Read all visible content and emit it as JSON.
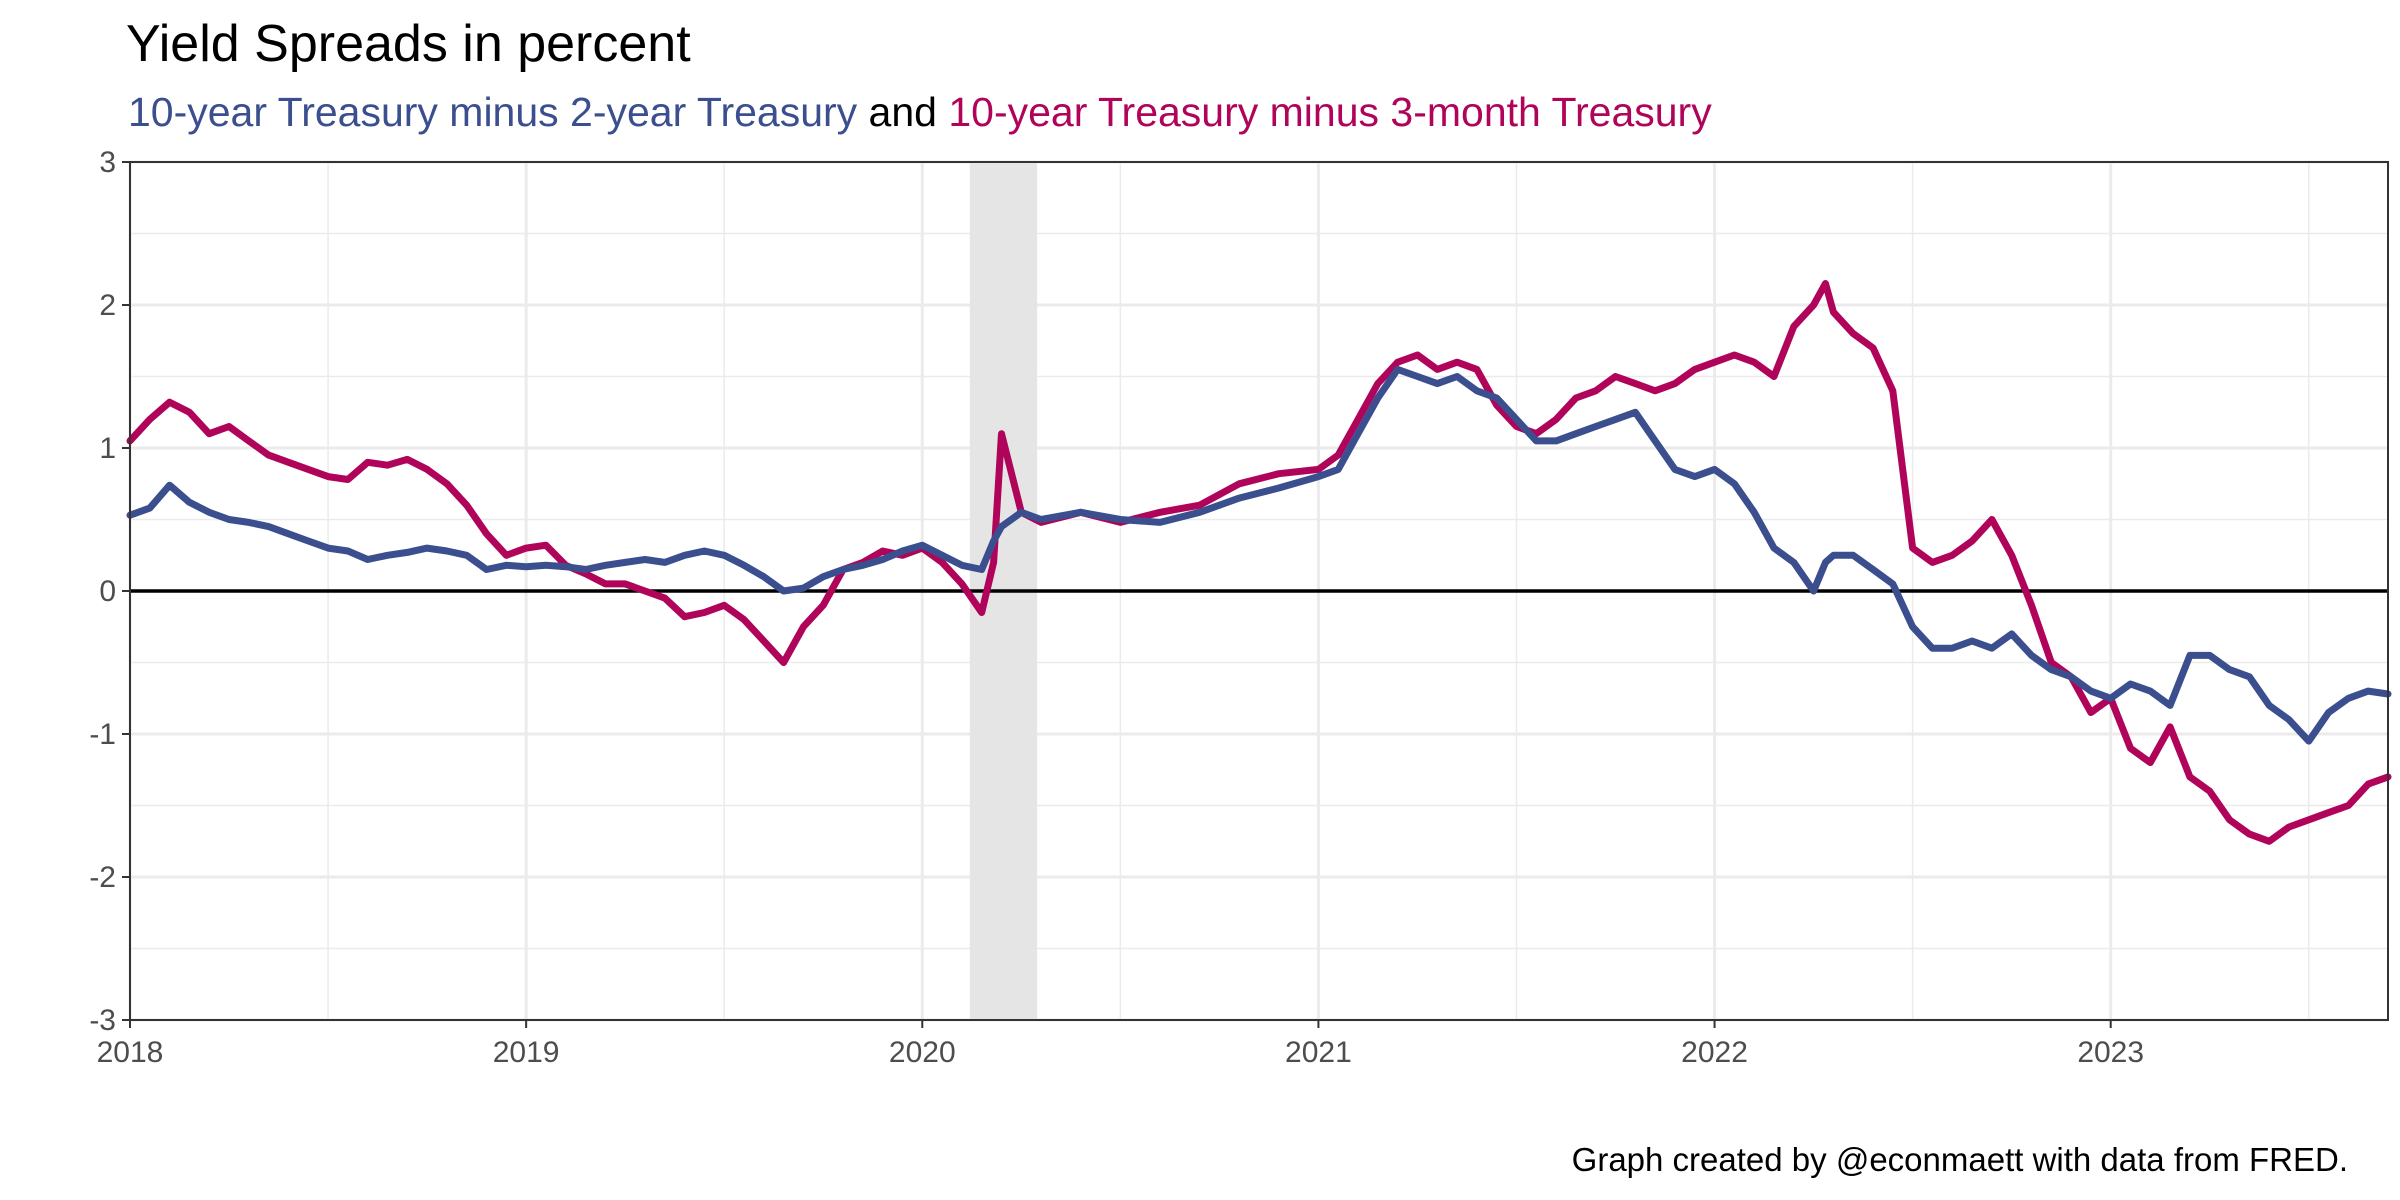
{
  "title": "Yield Spreads in percent",
  "subtitle": {
    "part1": "10-year Treasury minus 2-year Treasury",
    "connector": " and ",
    "part2": "10-year Treasury minus 3-month Treasury"
  },
  "caption": "Graph created by @econmaett with data from FRED.",
  "colors": {
    "series_2y": "#3B4F8F",
    "series_3m": "#B0045A",
    "recession": "#E5E5E5",
    "zero_line": "#000000"
  },
  "chart_data": {
    "type": "line",
    "title": "Yield Spreads in percent",
    "xlabel": "",
    "ylabel": "",
    "xlim": [
      2018.0,
      2023.7
    ],
    "ylim": [
      -3,
      3
    ],
    "x_ticks": [
      "2018",
      "2019",
      "2020",
      "2021",
      "2022",
      "2023"
    ],
    "y_ticks": [
      "3",
      "2",
      "1",
      "0",
      "-1",
      "-2",
      "-3"
    ],
    "grid": true,
    "reference_line_y": 0,
    "shaded_periods": [
      {
        "label": "recession",
        "start": 2020.12,
        "end": 2020.29
      }
    ],
    "series": [
      {
        "name": "10-year Treasury minus 2-year Treasury",
        "x": [
          2018.0,
          2018.05,
          2018.1,
          2018.15,
          2018.2,
          2018.25,
          2018.3,
          2018.35,
          2018.4,
          2018.45,
          2018.5,
          2018.55,
          2018.6,
          2018.65,
          2018.7,
          2018.75,
          2018.8,
          2018.85,
          2018.9,
          2018.95,
          2019.0,
          2019.05,
          2019.1,
          2019.15,
          2019.2,
          2019.25,
          2019.3,
          2019.35,
          2019.4,
          2019.45,
          2019.5,
          2019.55,
          2019.6,
          2019.65,
          2019.7,
          2019.75,
          2019.8,
          2019.85,
          2019.9,
          2019.95,
          2020.0,
          2020.05,
          2020.1,
          2020.15,
          2020.18,
          2020.2,
          2020.25,
          2020.3,
          2020.4,
          2020.5,
          2020.6,
          2020.7,
          2020.8,
          2020.9,
          2021.0,
          2021.05,
          2021.1,
          2021.15,
          2021.2,
          2021.25,
          2021.3,
          2021.35,
          2021.4,
          2021.45,
          2021.5,
          2021.55,
          2021.6,
          2021.65,
          2021.7,
          2021.75,
          2021.8,
          2021.85,
          2021.9,
          2021.95,
          2022.0,
          2022.05,
          2022.1,
          2022.15,
          2022.2,
          2022.25,
          2022.28,
          2022.3,
          2022.35,
          2022.4,
          2022.45,
          2022.5,
          2022.55,
          2022.6,
          2022.65,
          2022.7,
          2022.75,
          2022.8,
          2022.85,
          2022.9,
          2022.95,
          2023.0,
          2023.05,
          2023.1,
          2023.15,
          2023.2,
          2023.25,
          2023.3,
          2023.35,
          2023.4,
          2023.45,
          2023.5,
          2023.55,
          2023.6,
          2023.65,
          2023.7
        ],
        "y": [
          0.53,
          0.58,
          0.74,
          0.62,
          0.55,
          0.5,
          0.48,
          0.45,
          0.4,
          0.35,
          0.3,
          0.28,
          0.22,
          0.25,
          0.27,
          0.3,
          0.28,
          0.25,
          0.15,
          0.18,
          0.17,
          0.18,
          0.17,
          0.15,
          0.18,
          0.2,
          0.22,
          0.2,
          0.25,
          0.28,
          0.25,
          0.18,
          0.1,
          0.0,
          0.02,
          0.1,
          0.15,
          0.18,
          0.22,
          0.28,
          0.32,
          0.25,
          0.18,
          0.15,
          0.35,
          0.45,
          0.55,
          0.5,
          0.55,
          0.5,
          0.48,
          0.55,
          0.65,
          0.72,
          0.8,
          0.85,
          1.1,
          1.35,
          1.55,
          1.5,
          1.45,
          1.5,
          1.4,
          1.35,
          1.2,
          1.05,
          1.05,
          1.1,
          1.15,
          1.2,
          1.25,
          1.05,
          0.85,
          0.8,
          0.85,
          0.75,
          0.55,
          0.3,
          0.2,
          0.0,
          0.2,
          0.25,
          0.25,
          0.15,
          0.05,
          -0.25,
          -0.4,
          -0.4,
          -0.35,
          -0.4,
          -0.3,
          -0.45,
          -0.55,
          -0.6,
          -0.7,
          -0.75,
          -0.65,
          -0.7,
          -0.8,
          -0.45,
          -0.45,
          -0.55,
          -0.6,
          -0.8,
          -0.9,
          -1.05,
          -0.85,
          -0.75,
          -0.7,
          -0.72
        ]
      },
      {
        "name": "10-year Treasury minus 3-month Treasury",
        "x": [
          2018.0,
          2018.05,
          2018.1,
          2018.15,
          2018.2,
          2018.25,
          2018.3,
          2018.35,
          2018.4,
          2018.45,
          2018.5,
          2018.55,
          2018.6,
          2018.65,
          2018.7,
          2018.75,
          2018.8,
          2018.85,
          2018.9,
          2018.95,
          2019.0,
          2019.05,
          2019.1,
          2019.15,
          2019.2,
          2019.25,
          2019.3,
          2019.35,
          2019.4,
          2019.45,
          2019.5,
          2019.55,
          2019.6,
          2019.65,
          2019.7,
          2019.75,
          2019.8,
          2019.85,
          2019.9,
          2019.95,
          2020.0,
          2020.05,
          2020.1,
          2020.15,
          2020.18,
          2020.2,
          2020.25,
          2020.3,
          2020.4,
          2020.5,
          2020.6,
          2020.7,
          2020.8,
          2020.9,
          2021.0,
          2021.05,
          2021.1,
          2021.15,
          2021.2,
          2021.25,
          2021.3,
          2021.35,
          2021.4,
          2021.45,
          2021.5,
          2021.55,
          2021.6,
          2021.65,
          2021.7,
          2021.75,
          2021.8,
          2021.85,
          2021.9,
          2021.95,
          2022.0,
          2022.05,
          2022.1,
          2022.15,
          2022.2,
          2022.25,
          2022.28,
          2022.3,
          2022.35,
          2022.4,
          2022.45,
          2022.5,
          2022.55,
          2022.6,
          2022.65,
          2022.7,
          2022.75,
          2022.8,
          2022.85,
          2022.9,
          2022.95,
          2023.0,
          2023.05,
          2023.1,
          2023.15,
          2023.2,
          2023.25,
          2023.3,
          2023.35,
          2023.4,
          2023.45,
          2023.5,
          2023.55,
          2023.6,
          2023.65,
          2023.7
        ],
        "y": [
          1.05,
          1.2,
          1.32,
          1.25,
          1.1,
          1.15,
          1.05,
          0.95,
          0.9,
          0.85,
          0.8,
          0.78,
          0.9,
          0.88,
          0.92,
          0.85,
          0.75,
          0.6,
          0.4,
          0.25,
          0.3,
          0.32,
          0.18,
          0.12,
          0.05,
          0.05,
          0.0,
          -0.05,
          -0.18,
          -0.15,
          -0.1,
          -0.2,
          -0.35,
          -0.5,
          -0.25,
          -0.1,
          0.15,
          0.2,
          0.28,
          0.25,
          0.3,
          0.2,
          0.05,
          -0.15,
          0.2,
          1.1,
          0.55,
          0.48,
          0.55,
          0.48,
          0.55,
          0.6,
          0.75,
          0.82,
          0.85,
          0.95,
          1.2,
          1.45,
          1.6,
          1.65,
          1.55,
          1.6,
          1.55,
          1.3,
          1.15,
          1.1,
          1.2,
          1.35,
          1.4,
          1.5,
          1.45,
          1.4,
          1.45,
          1.55,
          1.6,
          1.65,
          1.6,
          1.5,
          1.85,
          2.0,
          2.15,
          1.95,
          1.8,
          1.7,
          1.4,
          0.3,
          0.2,
          0.25,
          0.35,
          0.5,
          0.25,
          -0.1,
          -0.5,
          -0.6,
          -0.85,
          -0.75,
          -1.1,
          -1.2,
          -0.95,
          -1.3,
          -1.4,
          -1.6,
          -1.7,
          -1.75,
          -1.65,
          -1.6,
          -1.55,
          -1.5,
          -1.35,
          -1.3
        ]
      }
    ]
  }
}
